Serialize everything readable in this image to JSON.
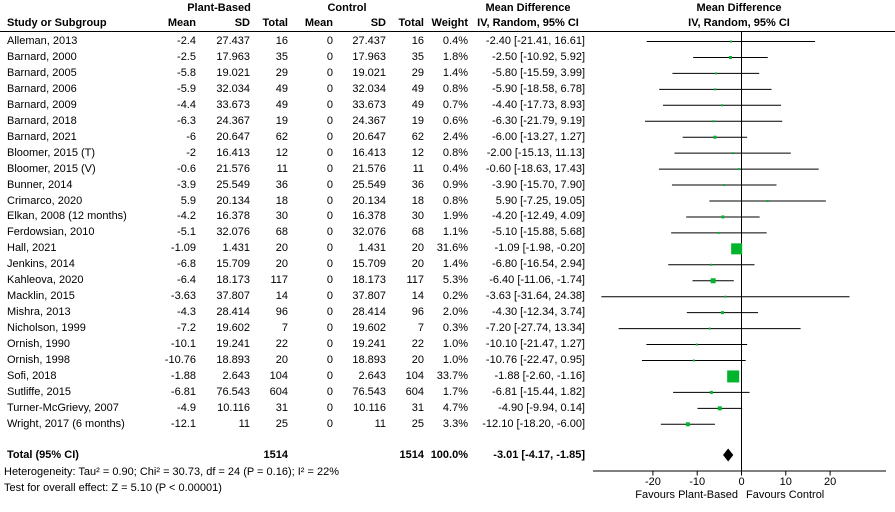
{
  "header": {
    "study_col": "Study or Subgroup",
    "group1": "Plant-Based",
    "group2": "Control",
    "sub_mean": "Mean",
    "sub_sd": "SD",
    "sub_total": "Total",
    "weight_col": "Weight",
    "effect_title": "Mean Difference",
    "effect_subtitle": "IV, Random, 95% CI",
    "plot_title": "Mean Difference",
    "plot_subtitle": "IV, Random, 95% CI"
  },
  "total_row": {
    "label": "Total (95% CI)",
    "total": "1514",
    "c_total": "1514",
    "weight": "100.0%",
    "ci_text": "-3.01 [-4.17, -1.85]"
  },
  "footnotes": {
    "heterogeneity": "Heterogeneity: Tau² = 0.90; Chi² = 30.73, df = 24 (P = 0.16); I² = 22%",
    "overall_effect": "Test for overall effect: Z = 5.10 (P < 0.00001)"
  },
  "colors": {
    "marker_green": "#00b42c",
    "line_black": "#000000",
    "diamond_black": "#000000"
  },
  "chart_data": {
    "type": "scatter",
    "subtype": "forest-plot-meta-analysis",
    "effect_measure": "Mean Difference IV, Random, 95% CI",
    "xaxis": {
      "ticks": [
        -20,
        -10,
        0,
        10,
        20
      ],
      "favours_left": "Favours Plant-Based",
      "favours_right": "Favours Control"
    },
    "studies": [
      {
        "name": "Alleman, 2013",
        "mean": "-2.4",
        "sd": "27.437",
        "total": "16",
        "c_mean": "0",
        "c_sd": "27.437",
        "c_total": "16",
        "weight": "0.4%",
        "w": 0.4,
        "ci_text": "-2.40 [-21.41, 16.61]",
        "est": -2.4,
        "lo": -21.41,
        "hi": 16.61
      },
      {
        "name": "Barnard, 2000",
        "mean": "-2.5",
        "sd": "17.963",
        "total": "35",
        "c_mean": "0",
        "c_sd": "17.963",
        "c_total": "35",
        "weight": "1.8%",
        "w": 1.8,
        "ci_text": "-2.50 [-10.92, 5.92]",
        "est": -2.5,
        "lo": -10.92,
        "hi": 5.92
      },
      {
        "name": "Barnard, 2005",
        "mean": "-5.8",
        "sd": "19.021",
        "total": "29",
        "c_mean": "0",
        "c_sd": "19.021",
        "c_total": "29",
        "weight": "1.4%",
        "w": 1.4,
        "ci_text": "-5.80 [-15.59, 3.99]",
        "est": -5.8,
        "lo": -15.59,
        "hi": 3.99
      },
      {
        "name": "Barnard, 2006",
        "mean": "-5.9",
        "sd": "32.034",
        "total": "49",
        "c_mean": "0",
        "c_sd": "32.034",
        "c_total": "49",
        "weight": "0.8%",
        "w": 0.8,
        "ci_text": "-5.90 [-18.58, 6.78]",
        "est": -5.9,
        "lo": -18.58,
        "hi": 6.78
      },
      {
        "name": "Barnard, 2009",
        "mean": "-4.4",
        "sd": "33.673",
        "total": "49",
        "c_mean": "0",
        "c_sd": "33.673",
        "c_total": "49",
        "weight": "0.7%",
        "w": 0.7,
        "ci_text": "-4.40 [-17.73, 8.93]",
        "est": -4.4,
        "lo": -17.73,
        "hi": 8.93
      },
      {
        "name": "Barnard, 2018",
        "mean": "-6.3",
        "sd": "24.367",
        "total": "19",
        "c_mean": "0",
        "c_sd": "24.367",
        "c_total": "19",
        "weight": "0.6%",
        "w": 0.6,
        "ci_text": "-6.30 [-21.79, 9.19]",
        "est": -6.3,
        "lo": -21.79,
        "hi": 9.19
      },
      {
        "name": "Barnard, 2021",
        "mean": "-6",
        "sd": "20.647",
        "total": "62",
        "c_mean": "0",
        "c_sd": "20.647",
        "c_total": "62",
        "weight": "2.4%",
        "w": 2.4,
        "ci_text": "-6.00 [-13.27, 1.27]",
        "est": -6.0,
        "lo": -13.27,
        "hi": 1.27
      },
      {
        "name": "Bloomer, 2015 (T)",
        "mean": "-2",
        "sd": "16.413",
        "total": "12",
        "c_mean": "0",
        "c_sd": "16.413",
        "c_total": "12",
        "weight": "0.8%",
        "w": 0.8,
        "ci_text": "-2.00 [-15.13, 11.13]",
        "est": -2.0,
        "lo": -15.13,
        "hi": 11.13
      },
      {
        "name": "Bloomer, 2015 (V)",
        "mean": "-0.6",
        "sd": "21.576",
        "total": "11",
        "c_mean": "0",
        "c_sd": "21.576",
        "c_total": "11",
        "weight": "0.4%",
        "w": 0.4,
        "ci_text": "-0.60 [-18.63, 17.43]",
        "est": -0.6,
        "lo": -18.63,
        "hi": 17.43
      },
      {
        "name": "Bunner, 2014",
        "mean": "-3.9",
        "sd": "25.549",
        "total": "36",
        "c_mean": "0",
        "c_sd": "25.549",
        "c_total": "36",
        "weight": "0.9%",
        "w": 0.9,
        "ci_text": "-3.90 [-15.70, 7.90]",
        "est": -3.9,
        "lo": -15.7,
        "hi": 7.9
      },
      {
        "name": "Crimarco, 2020",
        "mean": "5.9",
        "sd": "20.134",
        "total": "18",
        "c_mean": "0",
        "c_sd": "20.134",
        "c_total": "18",
        "weight": "0.8%",
        "w": 0.8,
        "ci_text": "5.90 [-7.25, 19.05]",
        "est": 5.9,
        "lo": -7.25,
        "hi": 19.05
      },
      {
        "name": "Elkan, 2008 (12 months)",
        "mean": "-4.2",
        "sd": "16.378",
        "total": "30",
        "c_mean": "0",
        "c_sd": "16.378",
        "c_total": "30",
        "weight": "1.9%",
        "w": 1.9,
        "ci_text": "-4.20 [-12.49, 4.09]",
        "est": -4.2,
        "lo": -12.49,
        "hi": 4.09
      },
      {
        "name": "Ferdowsian, 2010",
        "mean": "-5.1",
        "sd": "32.076",
        "total": "68",
        "c_mean": "0",
        "c_sd": "32.076",
        "c_total": "68",
        "weight": "1.1%",
        "w": 1.1,
        "ci_text": "-5.10 [-15.88, 5.68]",
        "est": -5.1,
        "lo": -15.88,
        "hi": 5.68
      },
      {
        "name": "Hall, 2021",
        "mean": "-1.09",
        "sd": "1.431",
        "total": "20",
        "c_mean": "0",
        "c_sd": "1.431",
        "c_total": "20",
        "weight": "31.6%",
        "w": 31.6,
        "ci_text": "-1.09 [-1.98, -0.20]",
        "est": -1.09,
        "lo": -1.98,
        "hi": -0.2
      },
      {
        "name": "Jenkins, 2014",
        "mean": "-6.8",
        "sd": "15.709",
        "total": "20",
        "c_mean": "0",
        "c_sd": "15.709",
        "c_total": "20",
        "weight": "1.4%",
        "w": 1.4,
        "ci_text": "-6.80 [-16.54, 2.94]",
        "est": -6.8,
        "lo": -16.54,
        "hi": 2.94
      },
      {
        "name": "Kahleova, 2020",
        "mean": "-6.4",
        "sd": "18.173",
        "total": "117",
        "c_mean": "0",
        "c_sd": "18.173",
        "c_total": "117",
        "weight": "5.3%",
        "w": 5.3,
        "ci_text": "-6.40 [-11.06, -1.74]",
        "est": -6.4,
        "lo": -11.06,
        "hi": -1.74
      },
      {
        "name": "Macklin, 2015",
        "mean": "-3.63",
        "sd": "37.807",
        "total": "14",
        "c_mean": "0",
        "c_sd": "37.807",
        "c_total": "14",
        "weight": "0.2%",
        "w": 0.2,
        "ci_text": "-3.63 [-31.64, 24.38]",
        "est": -3.63,
        "lo": -31.64,
        "hi": 24.38
      },
      {
        "name": "Mishra, 2013",
        "mean": "-4.3",
        "sd": "28.414",
        "total": "96",
        "c_mean": "0",
        "c_sd": "28.414",
        "c_total": "96",
        "weight": "2.0%",
        "w": 2.0,
        "ci_text": "-4.30 [-12.34, 3.74]",
        "est": -4.3,
        "lo": -12.34,
        "hi": 3.74
      },
      {
        "name": "Nicholson, 1999",
        "mean": "-7.2",
        "sd": "19.602",
        "total": "7",
        "c_mean": "0",
        "c_sd": "19.602",
        "c_total": "7",
        "weight": "0.3%",
        "w": 0.3,
        "ci_text": "-7.20 [-27.74, 13.34]",
        "est": -7.2,
        "lo": -27.74,
        "hi": 13.34
      },
      {
        "name": "Ornish, 1990",
        "mean": "-10.1",
        "sd": "19.241",
        "total": "22",
        "c_mean": "0",
        "c_sd": "19.241",
        "c_total": "22",
        "weight": "1.0%",
        "w": 1.0,
        "ci_text": "-10.10 [-21.47, 1.27]",
        "est": -10.1,
        "lo": -21.47,
        "hi": 1.27
      },
      {
        "name": "Ornish, 1998",
        "mean": "-10.76",
        "sd": "18.893",
        "total": "20",
        "c_mean": "0",
        "c_sd": "18.893",
        "c_total": "20",
        "weight": "1.0%",
        "w": 1.0,
        "ci_text": "-10.76 [-22.47, 0.95]",
        "est": -10.76,
        "lo": -22.47,
        "hi": 0.95
      },
      {
        "name": "Sofi, 2018",
        "mean": "-1.88",
        "sd": "2.643",
        "total": "104",
        "c_mean": "0",
        "c_sd": "2.643",
        "c_total": "104",
        "weight": "33.7%",
        "w": 33.7,
        "ci_text": "-1.88 [-2.60, -1.16]",
        "est": -1.88,
        "lo": -2.6,
        "hi": -1.16
      },
      {
        "name": "Sutliffe, 2015",
        "mean": "-6.81",
        "sd": "76.543",
        "total": "604",
        "c_mean": "0",
        "c_sd": "76.543",
        "c_total": "604",
        "weight": "1.7%",
        "w": 1.7,
        "ci_text": "-6.81 [-15.44, 1.82]",
        "est": -6.81,
        "lo": -15.44,
        "hi": 1.82
      },
      {
        "name": "Turner-McGrievy, 2007",
        "mean": "-4.9",
        "sd": "10.116",
        "total": "31",
        "c_mean": "0",
        "c_sd": "10.116",
        "c_total": "31",
        "weight": "4.7%",
        "w": 4.7,
        "ci_text": "-4.90 [-9.94, 0.14]",
        "est": -4.9,
        "lo": -9.94,
        "hi": 0.14
      },
      {
        "name": "Wright, 2017 (6 months)",
        "mean": "-12.1",
        "sd": "11",
        "total": "25",
        "c_mean": "0",
        "c_sd": "11",
        "c_total": "25",
        "weight": "3.3%",
        "w": 3.3,
        "ci_text": "-12.10 [-18.20, -6.00]",
        "est": -12.1,
        "lo": -18.2,
        "hi": -6.0
      }
    ],
    "total": {
      "est": -3.01,
      "lo": -4.17,
      "hi": -1.85
    },
    "heterogeneity": {
      "tau2": 0.9,
      "chi2": 30.73,
      "df": 24,
      "p": 0.16,
      "i2_pct": 22
    },
    "overall_effect": {
      "z": 5.1,
      "p": "< 0.00001"
    }
  }
}
